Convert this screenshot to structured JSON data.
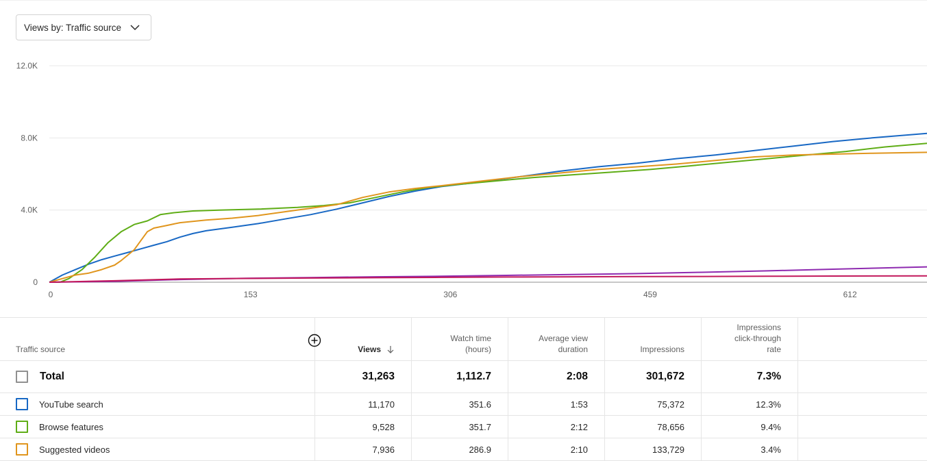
{
  "dropdown": {
    "label": "Views by: Traffic source"
  },
  "colors": {
    "youtube_search": "#1868c4",
    "browse_features": "#5fad16",
    "suggested_videos": "#e0951d",
    "series4": "#8e2ab0",
    "series5": "#c2185b"
  },
  "chart_data": {
    "type": "line",
    "xlim": [
      0,
      672
    ],
    "ylim": [
      0,
      12000
    ],
    "x_ticks": [
      "0",
      "153",
      "306",
      "459",
      "612"
    ],
    "x_tick_values": [
      0,
      153,
      306,
      459,
      612
    ],
    "y_ticks": [
      "0",
      "4.0K",
      "8.0K",
      "12.0K"
    ],
    "y_tick_values": [
      0,
      4000,
      8000,
      12000
    ],
    "grid": true,
    "series": [
      {
        "key": "youtube_search",
        "color": "#1868c4",
        "points": [
          [
            0,
            0
          ],
          [
            10,
            400
          ],
          [
            20,
            700
          ],
          [
            30,
            1000
          ],
          [
            40,
            1250
          ],
          [
            50,
            1450
          ],
          [
            60,
            1650
          ],
          [
            70,
            1850
          ],
          [
            80,
            2050
          ],
          [
            90,
            2250
          ],
          [
            100,
            2500
          ],
          [
            110,
            2700
          ],
          [
            120,
            2850
          ],
          [
            140,
            3050
          ],
          [
            160,
            3250
          ],
          [
            180,
            3500
          ],
          [
            200,
            3750
          ],
          [
            220,
            4050
          ],
          [
            240,
            4400
          ],
          [
            260,
            4750
          ],
          [
            280,
            5050
          ],
          [
            300,
            5300
          ],
          [
            330,
            5550
          ],
          [
            360,
            5850
          ],
          [
            390,
            6150
          ],
          [
            420,
            6400
          ],
          [
            450,
            6600
          ],
          [
            480,
            6850
          ],
          [
            510,
            7050
          ],
          [
            540,
            7300
          ],
          [
            570,
            7550
          ],
          [
            600,
            7800
          ],
          [
            630,
            8000
          ],
          [
            672,
            8250
          ]
        ]
      },
      {
        "key": "browse_features",
        "color": "#5fad16",
        "points": [
          [
            0,
            0
          ],
          [
            8,
            0
          ],
          [
            15,
            200
          ],
          [
            25,
            700
          ],
          [
            35,
            1400
          ],
          [
            45,
            2200
          ],
          [
            55,
            2800
          ],
          [
            65,
            3200
          ],
          [
            75,
            3400
          ],
          [
            85,
            3750
          ],
          [
            95,
            3850
          ],
          [
            110,
            3950
          ],
          [
            130,
            4000
          ],
          [
            160,
            4050
          ],
          [
            190,
            4150
          ],
          [
            210,
            4250
          ],
          [
            230,
            4400
          ],
          [
            250,
            4700
          ],
          [
            270,
            5000
          ],
          [
            290,
            5250
          ],
          [
            310,
            5400
          ],
          [
            340,
            5600
          ],
          [
            370,
            5800
          ],
          [
            400,
            5950
          ],
          [
            430,
            6100
          ],
          [
            460,
            6250
          ],
          [
            490,
            6450
          ],
          [
            520,
            6650
          ],
          [
            550,
            6850
          ],
          [
            580,
            7050
          ],
          [
            610,
            7250
          ],
          [
            640,
            7500
          ],
          [
            672,
            7700
          ]
        ]
      },
      {
        "key": "suggested_videos",
        "color": "#e0951d",
        "points": [
          [
            0,
            0
          ],
          [
            10,
            200
          ],
          [
            20,
            400
          ],
          [
            30,
            500
          ],
          [
            40,
            700
          ],
          [
            50,
            950
          ],
          [
            55,
            1200
          ],
          [
            60,
            1500
          ],
          [
            65,
            1800
          ],
          [
            70,
            2300
          ],
          [
            75,
            2800
          ],
          [
            80,
            3000
          ],
          [
            90,
            3150
          ],
          [
            100,
            3300
          ],
          [
            120,
            3450
          ],
          [
            140,
            3550
          ],
          [
            160,
            3700
          ],
          [
            180,
            3900
          ],
          [
            200,
            4100
          ],
          [
            220,
            4300
          ],
          [
            240,
            4700
          ],
          [
            260,
            5000
          ],
          [
            280,
            5200
          ],
          [
            300,
            5350
          ],
          [
            330,
            5600
          ],
          [
            360,
            5850
          ],
          [
            390,
            6050
          ],
          [
            420,
            6250
          ],
          [
            450,
            6400
          ],
          [
            480,
            6550
          ],
          [
            510,
            6750
          ],
          [
            540,
            6950
          ],
          [
            570,
            7050
          ],
          [
            600,
            7100
          ],
          [
            630,
            7150
          ],
          [
            672,
            7200
          ]
        ]
      },
      {
        "key": "series4",
        "color": "#8e2ab0",
        "points": [
          [
            0,
            0
          ],
          [
            50,
            50
          ],
          [
            100,
            150
          ],
          [
            150,
            220
          ],
          [
            200,
            260
          ],
          [
            250,
            300
          ],
          [
            300,
            330
          ],
          [
            350,
            380
          ],
          [
            400,
            430
          ],
          [
            450,
            480
          ],
          [
            500,
            550
          ],
          [
            550,
            630
          ],
          [
            600,
            720
          ],
          [
            672,
            850
          ]
        ]
      },
      {
        "key": "series5",
        "color": "#c2185b",
        "points": [
          [
            0,
            0
          ],
          [
            50,
            80
          ],
          [
            100,
            180
          ],
          [
            150,
            210
          ],
          [
            200,
            230
          ],
          [
            250,
            250
          ],
          [
            300,
            270
          ],
          [
            350,
            290
          ],
          [
            400,
            300
          ],
          [
            450,
            310
          ],
          [
            500,
            320
          ],
          [
            550,
            330
          ],
          [
            600,
            340
          ],
          [
            672,
            350
          ]
        ]
      }
    ]
  },
  "table": {
    "headers": {
      "traffic_source": "Traffic source",
      "views": "Views",
      "watch_time_1": "Watch time",
      "watch_time_2": "(hours)",
      "avg_view_1": "Average view",
      "avg_view_2": "duration",
      "impressions": "Impressions",
      "ctr_1": "Impressions",
      "ctr_2": "click-through",
      "ctr_3": "rate"
    },
    "total": {
      "label": "Total",
      "views": "31,263",
      "watch_time": "1,112.7",
      "avg_view_duration": "2:08",
      "impressions": "301,672",
      "ctr": "7.3%"
    },
    "rows": [
      {
        "label": "YouTube search",
        "color": "#1868c4",
        "views": "11,170",
        "watch_time": "351.6",
        "avg_view_duration": "1:53",
        "impressions": "75,372",
        "ctr": "12.3%"
      },
      {
        "label": "Browse features",
        "color": "#5fad16",
        "views": "9,528",
        "watch_time": "351.7",
        "avg_view_duration": "2:12",
        "impressions": "78,656",
        "ctr": "9.4%"
      },
      {
        "label": "Suggested videos",
        "color": "#e0951d",
        "views": "7,936",
        "watch_time": "286.9",
        "avg_view_duration": "2:10",
        "impressions": "133,729",
        "ctr": "3.4%"
      }
    ]
  }
}
